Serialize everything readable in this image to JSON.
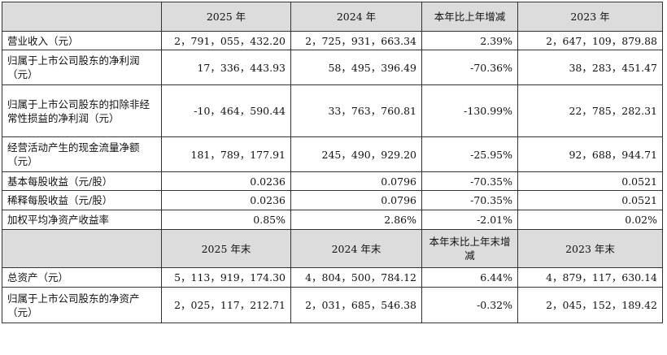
{
  "header1": [
    "",
    "2025 年",
    "2024 年",
    "本年比上年增减",
    "2023 年"
  ],
  "header2": [
    "",
    "2025 年末",
    "2024 年末",
    "本年末比上年末增减",
    "2023 年末"
  ],
  "rows": [
    {
      "label": "营业收入（元）",
      "v2025": "2，791，055，432.20",
      "v2024": "2，725，931，663.34",
      "change": "2.39%",
      "v2023": "2，647，109，879.88"
    },
    {
      "label": "归属于上市公司股东的净利润（元）",
      "v2025": "17，336，443.93",
      "v2024": "58，495，396.49",
      "change": "-70.36%",
      "v2023": "38，283，451.47"
    },
    {
      "label": "归属于上市公司股东的扣除非经常性损益的净利润（元）",
      "v2025": "-10，464，590.44",
      "v2024": "33，763，760.81",
      "change": "-130.99%",
      "v2023": "22，785，282.31"
    },
    {
      "label": "经营活动产生的现金流量净额（元）",
      "v2025": "181，789，177.91",
      "v2024": "245，490，929.20",
      "change": "-25.95%",
      "v2023": "92，688，944.71"
    },
    {
      "label": "基本每股收益（元/股）",
      "v2025": "0.0236",
      "v2024": "0.0796",
      "change": "-70.35%",
      "v2023": "0.0521"
    },
    {
      "label": "稀释每股收益（元/股）",
      "v2025": "0.0236",
      "v2024": "0.0796",
      "change": "-70.35%",
      "v2023": "0.0521"
    },
    {
      "label": "加权平均净资产收益率",
      "v2025": "0.85%",
      "v2024": "2.86%",
      "change": "-2.01%",
      "v2023": "0.02%"
    }
  ],
  "rows2": [
    {
      "label": "总资产（元）",
      "v2025": "5，113，919，174.30",
      "v2024": "4，804，500，784.12",
      "change": "6.44%",
      "v2023": "4，879，117，630.14"
    },
    {
      "label": "归属于上市公司股东的净资产（元）",
      "v2025": "2，025，117，212.71",
      "v2024": "2，031，685，546.38",
      "change": "-0.32%",
      "v2023": "2，045，152，189.42"
    }
  ]
}
